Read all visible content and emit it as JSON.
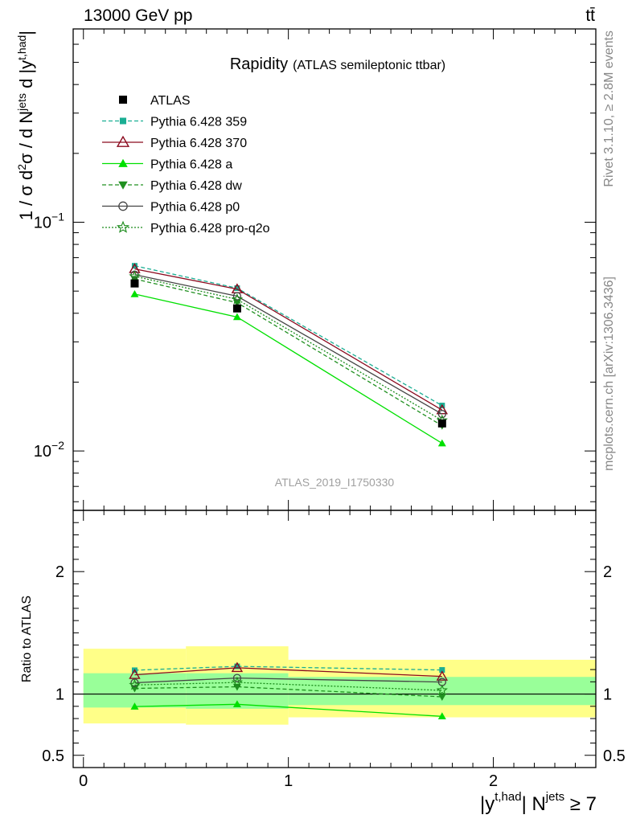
{
  "header": {
    "left": "13000 GeV pp",
    "right": "tt̄"
  },
  "side": {
    "upper": "Rivet 3.1.10, ≥ 2.8M events",
    "lower": "mcplots.cern.ch [arXiv:1306.3436]"
  },
  "chart_data": {
    "type": "line",
    "title": "Rapidity",
    "subtitle": "(ATLAS semileptonic ttbar)",
    "watermark": "ATLAS_2019_I1750330",
    "ylabel": "1 / σ d²σ / d N^jets d |y^t,had|",
    "ylabel_parts": {
      "a": "1 / σ d",
      "sup1": "2",
      "b": "σ / d N",
      "sup2": "jets",
      "c": " d |y",
      "sup3": "t,had",
      "d": "|"
    },
    "ratio_ylabel": "Ratio to ATLAS",
    "xlabel_parts": {
      "a": "|y",
      "sup1": "t,had",
      "b": "| N",
      "sup2": "jets",
      "c": " ≥ 7"
    },
    "main_yscale": "log",
    "main_ylim": [
      0.0055,
      0.7
    ],
    "ratio_ylim": [
      0.4,
      2.5
    ],
    "xlim": [
      -0.05,
      2.5
    ],
    "x_ticks": [
      "0",
      "1",
      "2"
    ],
    "main_y_ticks": [
      {
        "base": "10",
        "exp": "−1"
      },
      {
        "base": "10",
        "exp": "−2"
      }
    ],
    "ratio_y_ticks": [
      "2",
      "1",
      "0.5"
    ],
    "legend_position": "top-left",
    "bins": [
      [
        0,
        0.5
      ],
      [
        0.5,
        1.0
      ],
      [
        1.0,
        2.5
      ]
    ],
    "x": [
      0.25,
      0.75,
      1.75
    ],
    "data": {
      "name": "ATLAS",
      "values": [
        0.054,
        0.042,
        0.0132
      ],
      "band_inner": [
        [
          0.89,
          1.17
        ],
        [
          0.88,
          1.17
        ],
        [
          0.91,
          1.14
        ]
      ],
      "band_outer": [
        [
          0.76,
          1.37
        ],
        [
          0.75,
          1.39
        ],
        [
          0.81,
          1.28
        ]
      ]
    },
    "series": [
      {
        "name": "Pythia 6.428 359",
        "color": "#1aae93",
        "dash": "5,3",
        "marker": "square-small",
        "values": [
          0.0645,
          0.0515,
          0.0158
        ]
      },
      {
        "name": "Pythia 6.428 370",
        "color": "#8b0a1e",
        "dash": "",
        "marker": "triangle-open",
        "values": [
          0.0625,
          0.051,
          0.0151
        ]
      },
      {
        "name": "Pythia 6.428 a",
        "color": "#00e000",
        "dash": "",
        "marker": "triangle-filled",
        "values": [
          0.0485,
          0.0385,
          0.0108
        ]
      },
      {
        "name": "Pythia 6.428 dw",
        "color": "#209020",
        "dash": "5,3",
        "marker": "triangle-down",
        "values": [
          0.0565,
          0.0445,
          0.0129
        ]
      },
      {
        "name": "Pythia 6.428 p0",
        "color": "#444444",
        "dash": "",
        "marker": "circle-open",
        "values": [
          0.059,
          0.0475,
          0.0145
        ]
      },
      {
        "name": "Pythia 6.428 pro-q2o",
        "color": "#1a8a1a",
        "dash": "2,2",
        "marker": "star",
        "values": [
          0.058,
          0.046,
          0.0136
        ]
      }
    ],
    "colors": {
      "band_outer": "#ffff88",
      "band_inner": "#99ff99",
      "data": "#000000"
    }
  }
}
